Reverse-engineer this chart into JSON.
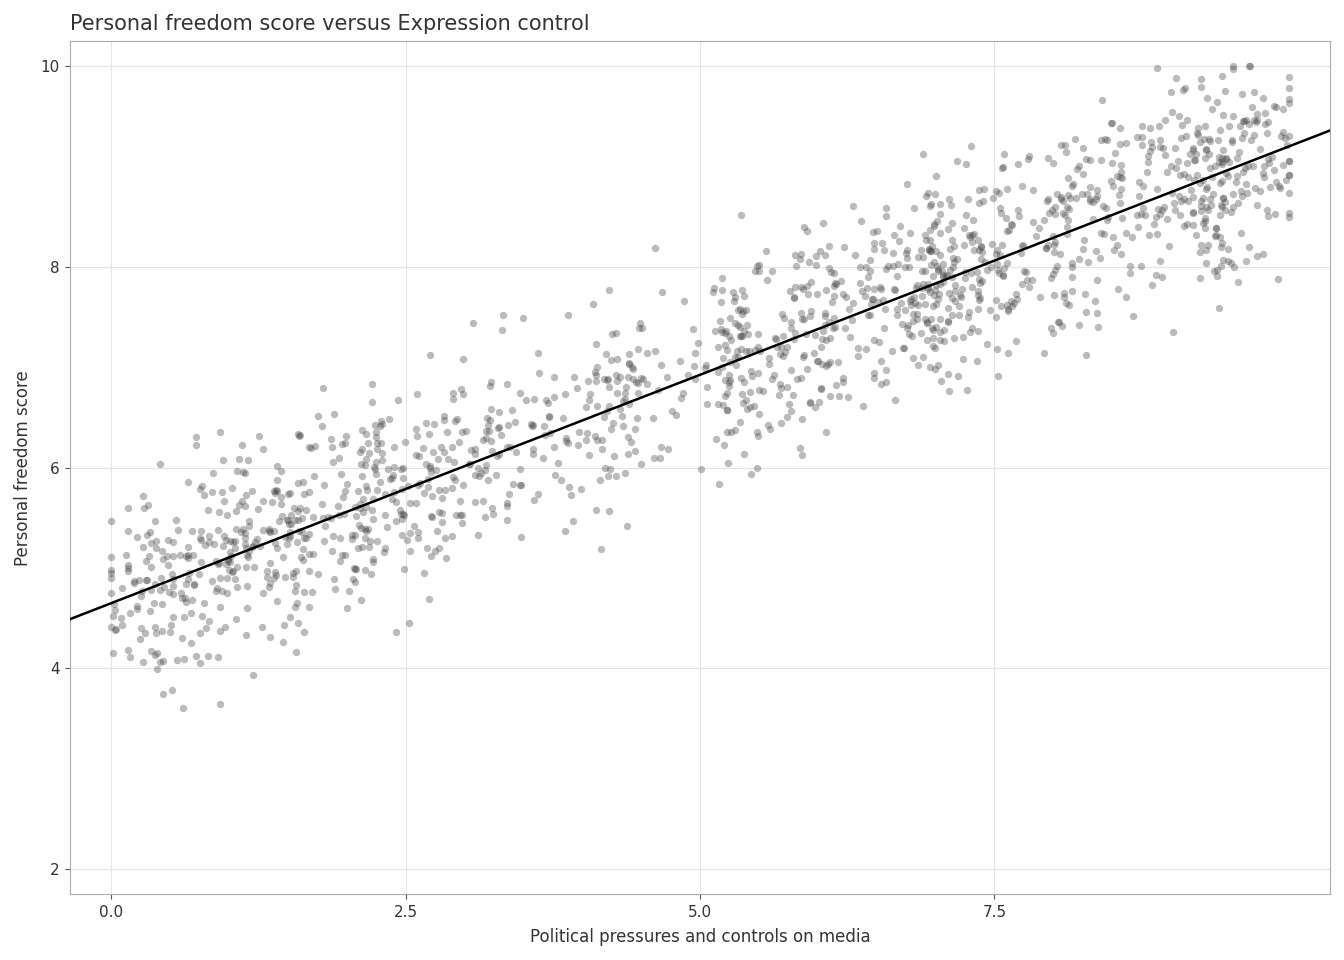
{
  "title": "Personal freedom score versus Expression control",
  "xlabel": "Political pressures and controls on media",
  "ylabel": "Personal freedom score",
  "xlim": [
    -0.35,
    10.35
  ],
  "ylim": [
    1.75,
    10.25
  ],
  "xticks": [
    0.0,
    2.5,
    5.0,
    7.5
  ],
  "yticks": [
    2,
    4,
    6,
    8,
    10
  ],
  "bg_color": "#FFFFFF",
  "grid_color": "#E5E5E5",
  "point_color": "#3D3D3D",
  "point_alpha": 0.35,
  "point_size": 28,
  "line_color": "#000000",
  "line_width": 1.8,
  "title_fontsize": 15,
  "label_fontsize": 12,
  "tick_fontsize": 11,
  "seed": 42,
  "intercept": 4.65,
  "slope": 0.455
}
